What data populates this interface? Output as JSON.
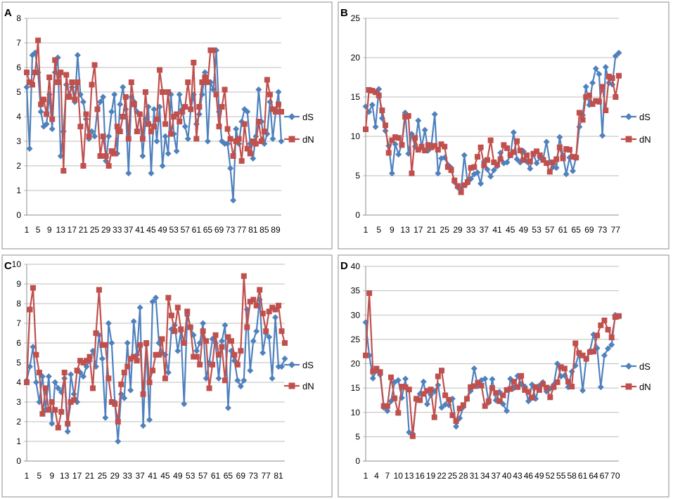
{
  "chart_data": [
    {
      "panel": "A",
      "type": "line",
      "ylim": [
        0,
        8
      ],
      "ytick_labels": [
        "0",
        "1",
        "2",
        "3",
        "4",
        "5",
        "6",
        "7",
        "8"
      ],
      "x_tick_labels": [
        "1",
        "5",
        "9",
        "13",
        "17",
        "21",
        "25",
        "29",
        "33",
        "37",
        "41",
        "45",
        "49",
        "53",
        "57",
        "61",
        "65",
        "69",
        "73",
        "77",
        "81",
        "85",
        "89"
      ],
      "n_points": 91,
      "series": [
        {
          "name": "dS",
          "color": "#4f81bd",
          "marker": "diamond",
          "values": [
            5.2,
            2.7,
            6.5,
            6.6,
            5.8,
            4.2,
            3.6,
            3.7,
            4.9,
            3.5,
            5.8,
            6.4,
            2.4,
            3.4,
            5.3,
            4.9,
            5.2,
            4.6,
            6.5,
            4.9,
            4.6,
            3.9,
            3.1,
            3.4,
            3.2,
            4.3,
            4.6,
            4.8,
            2.2,
            3.2,
            4.2,
            4.9,
            2.5,
            4.5,
            5.2,
            4.3,
            1.7,
            4.8,
            4.6,
            4.2,
            4.1,
            2.4,
            3.9,
            4.4,
            1.7,
            4.3,
            3.0,
            4.4,
            2.0,
            3.2,
            2.5,
            4.9,
            3.3,
            2.6,
            4.9,
            4.3,
            3.6,
            3.1,
            4.3,
            4.9,
            3.7,
            4.1,
            4.9,
            5.8,
            3.0,
            5.4,
            5.1,
            6.7,
            4.2,
            3.0,
            2.9,
            2.9,
            1.9,
            0.6,
            3.5,
            2.9,
            3.8,
            4.3,
            4.2,
            2.9,
            2.3,
            3.2,
            5.1,
            3.8,
            2.9,
            3.3,
            4.6,
            3.1,
            4.2,
            5.0,
            3.0
          ]
        },
        {
          "name": "dN",
          "color": "#c0504d",
          "marker": "square",
          "values": [
            5.8,
            5.4,
            5.3,
            5.8,
            7.1,
            4.5,
            4.7,
            4.1,
            5.6,
            3.9,
            6.3,
            5.4,
            5.8,
            1.8,
            5.7,
            4.8,
            5.4,
            4.7,
            5.4,
            3.6,
            2.0,
            4.1,
            3.2,
            5.3,
            6.1,
            4.3,
            2.4,
            3.2,
            2.4,
            2.0,
            2.6,
            2.5,
            3.6,
            3.4,
            4.0,
            4.8,
            3.1,
            5.4,
            4.5,
            3.4,
            4.1,
            3.1,
            5.0,
            3.7,
            3.4,
            3.6,
            3.9,
            5.9,
            5.0,
            3.7,
            5.0,
            3.3,
            4.0,
            4.1,
            3.8,
            4.2,
            4.4,
            5.4,
            4.3,
            6.2,
            3.1,
            4.4,
            5.4,
            5.6,
            5.4,
            6.7,
            6.7,
            4.9,
            3.6,
            4.4,
            5.1,
            3.5,
            3.1,
            2.4,
            3.0,
            3.1,
            2.2,
            3.7,
            2.7,
            2.5,
            3.0,
            2.9,
            3.8,
            3.0,
            3.4,
            5.5,
            4.9,
            4.3,
            4.2,
            4.5,
            4.2
          ]
        }
      ]
    },
    {
      "panel": "B",
      "type": "line",
      "ylim": [
        0,
        25
      ],
      "ytick_labels": [
        "0",
        "5",
        "10",
        "15",
        "20",
        "25"
      ],
      "x_tick_labels": [
        "1",
        "5",
        "9",
        "13",
        "17",
        "21",
        "25",
        "29",
        "33",
        "37",
        "41",
        "45",
        "49",
        "53",
        "57",
        "61",
        "65",
        "69",
        "73",
        "77"
      ],
      "n_points": 78,
      "series": [
        {
          "name": "dS",
          "color": "#4f81bd",
          "marker": "diamond",
          "values": [
            13.8,
            13.1,
            14.0,
            11.2,
            16.0,
            12.3,
            10.7,
            8.8,
            5.3,
            9.0,
            7.7,
            9.1,
            13.0,
            7.8,
            10.3,
            8.7,
            12.0,
            8.6,
            10.8,
            8.2,
            8.9,
            12.8,
            5.3,
            7.2,
            7.3,
            6.4,
            6.0,
            4.2,
            3.5,
            3.2,
            7.6,
            4.1,
            4.6,
            5.2,
            5.4,
            4.0,
            6.8,
            5.8,
            4.9,
            5.7,
            6.2,
            7.9,
            6.6,
            6.7,
            7.6,
            10.5,
            7.1,
            6.7,
            8.1,
            6.8,
            5.9,
            7.8,
            6.6,
            7.3,
            7.2,
            9.3,
            6.7,
            6.1,
            6.0,
            9.9,
            7.6,
            5.2,
            7.3,
            5.6,
            7.3,
            11.2,
            12.7,
            16.3,
            14.0,
            16.8,
            18.6,
            17.9,
            10.1,
            18.8,
            16.8,
            16.6,
            20.2,
            20.6
          ]
        },
        {
          "name": "dN",
          "color": "#c0504d",
          "marker": "square",
          "values": [
            10.9,
            15.9,
            15.8,
            15.6,
            15.2,
            13.3,
            11.4,
            7.9,
            9.5,
            9.9,
            9.8,
            8.9,
            12.5,
            12.6,
            5.3,
            9.8,
            8.3,
            8.7,
            8.2,
            8.9,
            8.6,
            8.8,
            8.3,
            9.0,
            8.7,
            6.1,
            5.7,
            4.4,
            3.7,
            2.9,
            3.8,
            4.2,
            6.0,
            6.1,
            7.4,
            8.6,
            6.3,
            7.0,
            9.5,
            6.7,
            6.4,
            7.1,
            8.9,
            8.5,
            7.6,
            8.0,
            9.4,
            8.2,
            7.0,
            7.6,
            6.8,
            7.8,
            8.1,
            7.6,
            7.0,
            6.6,
            5.5,
            6.7,
            7.1,
            8.6,
            7.2,
            8.4,
            8.3,
            7.4,
            7.3,
            13.0,
            12.1,
            15.0,
            15.2,
            14.1,
            14.5,
            14.4,
            16.3,
            13.3,
            17.6,
            17.4,
            15.0,
            17.7
          ]
        }
      ]
    },
    {
      "panel": "C",
      "type": "line",
      "ylim": [
        0,
        10
      ],
      "ytick_labels": [
        "0",
        "1",
        "2",
        "3",
        "4",
        "5",
        "6",
        "7",
        "8",
        "9",
        "10"
      ],
      "x_tick_labels": [
        "1",
        "5",
        "9",
        "13",
        "17",
        "21",
        "25",
        "29",
        "33",
        "37",
        "41",
        "45",
        "49",
        "53",
        "57",
        "61",
        "65",
        "69",
        "73",
        "77",
        "81"
      ],
      "n_points": 83,
      "series": [
        {
          "name": "dS",
          "color": "#4f81bd",
          "marker": "diamond",
          "values": [
            4.1,
            4.8,
            5.8,
            4.0,
            3.0,
            4.3,
            2.6,
            4.3,
            1.9,
            4.0,
            3.7,
            3.5,
            4.2,
            1.5,
            4.4,
            3.4,
            3.0,
            4.5,
            4.3,
            4.8,
            5.1,
            5.6,
            4.8,
            6.4,
            5.2,
            2.2,
            7.0,
            6.0,
            3.0,
            1.0,
            3.4,
            3.2,
            6.0,
            3.6,
            7.1,
            5.4,
            7.8,
            1.8,
            5.9,
            2.1,
            8.1,
            8.3,
            6.0,
            5.5,
            5.4,
            4.5,
            6.7,
            6.9,
            5.6,
            6.6,
            2.9,
            7.4,
            6.8,
            6.4,
            5.6,
            6.0,
            7.0,
            4.2,
            5.0,
            6.2,
            6.0,
            4.2,
            6.1,
            6.9,
            2.7,
            5.6,
            5.1,
            4.1,
            3.8,
            4.1,
            7.7,
            4.6,
            6.1,
            6.6,
            8.2,
            5.5,
            6.5,
            6.3,
            4.2,
            7.3,
            4.8,
            4.8,
            5.2
          ]
        },
        {
          "name": "dN",
          "color": "#c0504d",
          "marker": "square",
          "values": [
            4.0,
            7.7,
            8.8,
            5.4,
            4.5,
            2.4,
            3.7,
            2.6,
            3.0,
            2.6,
            1.7,
            2.5,
            4.5,
            1.9,
            3.0,
            3.1,
            4.6,
            5.1,
            5.0,
            5.1,
            5.3,
            3.7,
            6.5,
            8.7,
            5.9,
            5.9,
            4.2,
            3.0,
            2.9,
            2.0,
            3.9,
            4.5,
            4.8,
            5.2,
            5.3,
            5.1,
            5.9,
            3.4,
            6.0,
            4.0,
            4.6,
            5.4,
            5.4,
            6.2,
            4.2,
            8.3,
            7.4,
            6.6,
            7.8,
            6.7,
            6.0,
            7.6,
            6.8,
            5.3,
            5.3,
            4.9,
            6.6,
            6.1,
            3.7,
            4.9,
            6.4,
            5.4,
            5.8,
            4.1,
            6.3,
            6.1,
            5.4,
            4.9,
            5.6,
            9.4,
            6.8,
            8.1,
            8.2,
            7.9,
            8.7,
            7.5,
            6.6,
            7.6,
            7.8,
            7.7,
            7.9,
            6.6,
            6.0
          ]
        }
      ]
    },
    {
      "panel": "D",
      "type": "line",
      "ylim": [
        0,
        40
      ],
      "ytick_labels": [
        "0",
        "5",
        "10",
        "15",
        "20",
        "25",
        "30",
        "35",
        "40"
      ],
      "x_tick_labels": [
        "1",
        "4",
        "7",
        "10",
        "13",
        "16",
        "19",
        "22",
        "25",
        "28",
        "31",
        "34",
        "37",
        "40",
        "43",
        "46",
        "49",
        "52",
        "55",
        "58",
        "61",
        "64",
        "67",
        "70"
      ],
      "n_points": 71,
      "series": [
        {
          "name": "dS",
          "color": "#4f81bd",
          "marker": "diamond",
          "values": [
            28.5,
            21.7,
            17.0,
            18.6,
            17.7,
            11.0,
            10.3,
            12.3,
            16.2,
            16.6,
            13.0,
            16.9,
            5.9,
            5.6,
            12.6,
            13.8,
            16.3,
            11.7,
            13.6,
            14.3,
            15.6,
            11.0,
            11.6,
            11.5,
            12.8,
            7.1,
            8.8,
            11.1,
            12.8,
            14.4,
            19.0,
            15.4,
            16.6,
            16.9,
            12.0,
            16.8,
            12.5,
            14.2,
            11.7,
            10.3,
            16.9,
            15.0,
            17.5,
            15.8,
            15.3,
            12.3,
            15.7,
            12.8,
            15.5,
            16.2,
            14.3,
            14.9,
            15.7,
            20.0,
            17.4,
            17.6,
            15.2,
            18.4,
            19.6,
            22.2,
            14.5,
            21.0,
            22.6,
            26.0,
            23.2,
            15.2,
            21.7,
            23.1,
            23.9,
            30.0,
            29.7
          ]
        },
        {
          "name": "dN",
          "color": "#c0504d",
          "marker": "square",
          "values": [
            21.7,
            34.5,
            18.4,
            19.0,
            18.3,
            11.3,
            11.3,
            17.2,
            12.9,
            9.9,
            15.3,
            15.2,
            14.7,
            5.1,
            12.8,
            12.5,
            13.8,
            14.4,
            14.7,
            9.0,
            17.4,
            18.6,
            13.5,
            12.6,
            9.4,
            8.2,
            10.8,
            11.5,
            12.8,
            15.2,
            15.4,
            16.1,
            15.5,
            11.3,
            12.3,
            15.0,
            14.0,
            12.3,
            13.5,
            14.6,
            14.8,
            16.3,
            15.2,
            17.5,
            14.6,
            14.2,
            13.0,
            15.2,
            14.6,
            15.8,
            15.1,
            13.1,
            15.2,
            16.2,
            19.3,
            19.0,
            16.3,
            15.3,
            24.2,
            22.2,
            21.7,
            21.0,
            22.4,
            22.5,
            25.8,
            27.9,
            28.9,
            27.0,
            25.4,
            29.6,
            29.8
          ]
        }
      ]
    }
  ]
}
